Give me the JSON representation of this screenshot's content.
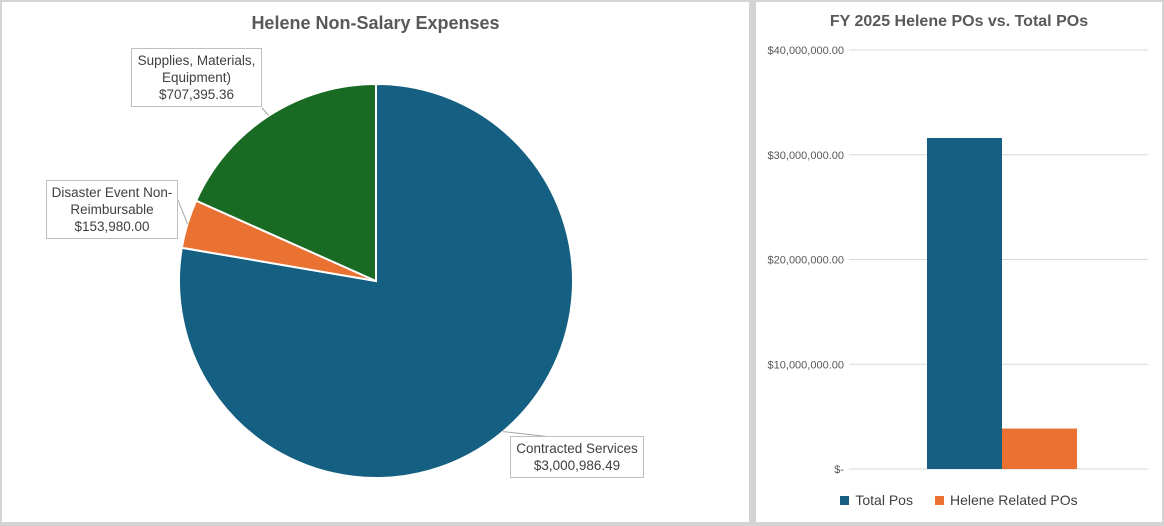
{
  "chart_data": [
    {
      "type": "pie",
      "title": "Helene Non-Salary Expenses",
      "slices": [
        {
          "label": "Contracted Services",
          "value_label": "$3,000,986.49",
          "value": 3000986.49,
          "color": "#156082"
        },
        {
          "label": "Disaster Event Non-Reimbursable",
          "label_lines": [
            "Disaster Event Non-",
            "Reimbursable"
          ],
          "value_label": "$153,980.00",
          "value": 153980.0,
          "color": "#E97132"
        },
        {
          "label": "Supplies, Materials, Equipment)",
          "label_lines": [
            "Supplies, Materials,",
            "Equipment)"
          ],
          "value_label": "$707,395.36",
          "value": 707395.36,
          "color": "#196B24"
        }
      ]
    },
    {
      "type": "bar",
      "title": "FY 2025 Helene POs vs. Total POs",
      "categories": [
        ""
      ],
      "series": [
        {
          "name": "Total Pos",
          "values": [
            31600000
          ],
          "color": "#156082"
        },
        {
          "name": "Helene Related POs",
          "values": [
            3862361.85
          ],
          "color": "#E97132"
        }
      ],
      "ylim": [
        0,
        40000000
      ],
      "yticks": [
        0,
        10000000,
        20000000,
        30000000,
        40000000
      ],
      "ytick_labels": [
        "$-",
        "$10,000,000.00",
        "$20,000,000.00",
        "$30,000,000.00",
        "$40,000,000.00"
      ],
      "grid": true,
      "legend": "bottom"
    }
  ]
}
